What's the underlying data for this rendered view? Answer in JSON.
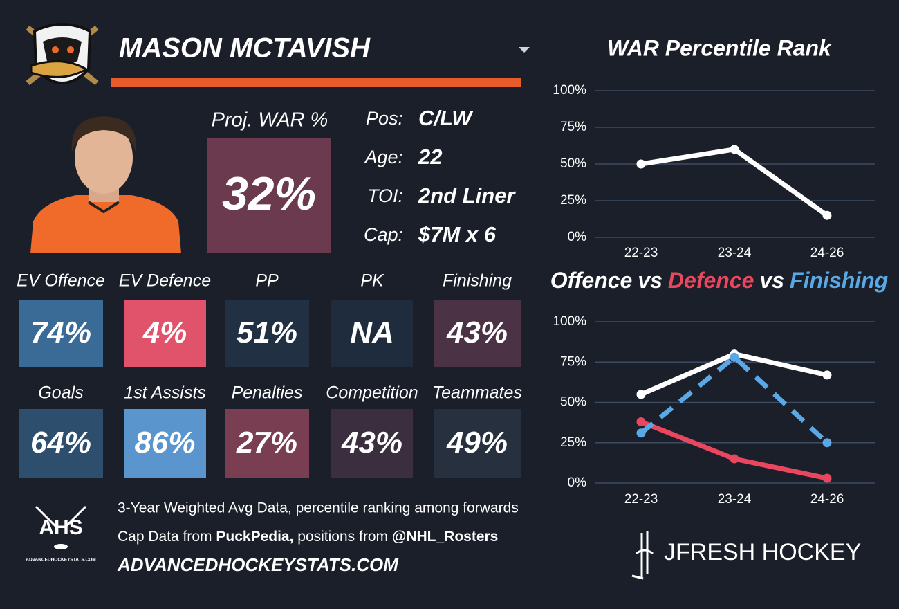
{
  "header": {
    "name": "MASON MCTAVISH"
  },
  "proj_war": {
    "label": "Proj. WAR %",
    "value": "32%"
  },
  "bio": [
    {
      "label": "Pos:",
      "value": "C/LW"
    },
    {
      "label": "Age:",
      "value": "22"
    },
    {
      "label": "TOI:",
      "value": "2nd Liner"
    },
    {
      "label": "Cap:",
      "value": "$7M x 6"
    }
  ],
  "tiles": [
    {
      "label": "EV Offence",
      "value": "74%",
      "color": "#3a6a96"
    },
    {
      "label": "EV Defence",
      "value": "4%",
      "color": "#e0536b"
    },
    {
      "label": "PP",
      "value": "51%",
      "color": "#223044"
    },
    {
      "label": "PK",
      "value": "NA",
      "color": "#1f2c3e"
    },
    {
      "label": "Finishing",
      "value": "43%",
      "color": "#4b3345"
    },
    {
      "label": "Goals",
      "value": "64%",
      "color": "#2e4e6e"
    },
    {
      "label": "1st Assists",
      "value": "86%",
      "color": "#5b95cd"
    },
    {
      "label": "Penalties",
      "value": "27%",
      "color": "#7a3e52"
    },
    {
      "label": "Competition",
      "value": "43%",
      "color": "#3b2e3e"
    },
    {
      "label": "Teammates",
      "value": "49%",
      "color": "#27303e"
    }
  ],
  "footer": {
    "logo": "AHS",
    "note": "3-Year Weighted Avg Data, percentile ranking among forwards",
    "credit": [
      "Cap Data from ",
      "PuckPedia,",
      " positions from ",
      "@NHL_Rosters"
    ],
    "site": "ADVANCEDHOCKEYSTATS.COM",
    "brand": "JFRESH HOCKEY"
  },
  "chart_data": [
    {
      "type": "line",
      "title": "WAR Percentile Rank",
      "categories": [
        "22-23",
        "23-24",
        "24-26"
      ],
      "values": [
        50,
        60,
        15
      ],
      "color": "#ffffff",
      "ylim": [
        0,
        100
      ],
      "yticks": [
        {
          "value": 0,
          "label": "0%"
        },
        {
          "value": 25,
          "label": "25%"
        },
        {
          "value": 50,
          "label": "50%"
        },
        {
          "value": 75,
          "label": "75%"
        },
        {
          "value": 100,
          "label": "100%"
        }
      ],
      "grid": true
    },
    {
      "type": "line",
      "title_connector": "vs",
      "categories": [
        "22-23",
        "23-24",
        "24-26"
      ],
      "series": [
        {
          "name": "Offence",
          "color": "#ffffff",
          "values": [
            55,
            80,
            67
          ]
        },
        {
          "name": "Defence",
          "color": "#e8475f",
          "values": [
            38,
            15,
            3
          ]
        },
        {
          "name": "Finishing",
          "color": "#5aa9e6",
          "dashed": true,
          "values": [
            31,
            78,
            25
          ]
        }
      ],
      "ylim": [
        0,
        100
      ],
      "yticks": [
        {
          "value": 0,
          "label": "0%"
        },
        {
          "value": 25,
          "label": "25%"
        },
        {
          "value": 50,
          "label": "50%"
        },
        {
          "value": 75,
          "label": "75%"
        },
        {
          "value": 100,
          "label": "100%"
        }
      ],
      "grid": true
    }
  ]
}
